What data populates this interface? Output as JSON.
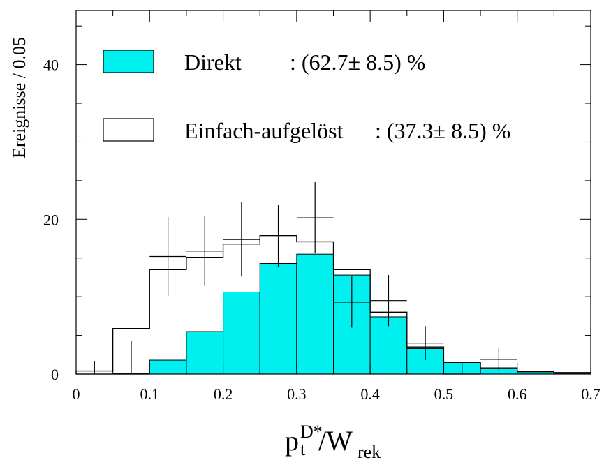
{
  "chart_data": {
    "type": "bar",
    "ylabel": "Ereignisse / 0.05",
    "xlabel": {
      "main": "p",
      "sup": "D*",
      "sub": "t",
      "rest": "/W",
      "rest_sub": "rek"
    },
    "xlim": [
      0,
      0.7
    ],
    "ylim": [
      0,
      47
    ],
    "x_ticks": [
      "0",
      "0.1",
      "0.2",
      "0.3",
      "0.4",
      "0.5",
      "0.6",
      "0.7"
    ],
    "y_ticks": [
      "0",
      "20",
      "40"
    ],
    "bin_edges": [
      0,
      0.05,
      0.1,
      0.15,
      0.2,
      0.25,
      0.3,
      0.35,
      0.4,
      0.45,
      0.5,
      0.55,
      0.6,
      0.65,
      0.7
    ],
    "series": [
      {
        "name": "Direkt",
        "legend_value": ": (62.7± 8.5) %",
        "style": "filled",
        "color": "#00f0f0",
        "values": [
          0,
          0.1,
          1.8,
          5.5,
          10.6,
          14.3,
          15.5,
          12.8,
          7.4,
          3.3,
          1.5,
          0.7,
          0.3,
          0.1
        ]
      },
      {
        "name": "Einfach-aufgelöst",
        "legend_value": ": (37.3± 8.5) %",
        "style": "outline",
        "color": "#000000",
        "values": [
          0.4,
          5.9,
          13.5,
          15.1,
          16.8,
          17.9,
          17.1,
          13.5,
          8.0,
          3.5,
          1.5,
          0.8,
          0.3,
          0.2
        ]
      }
    ],
    "data_points": {
      "style": "crosses",
      "x": [
        0.025,
        0.075,
        0.125,
        0.175,
        0.225,
        0.275,
        0.325,
        0.375,
        0.425,
        0.475,
        0.525,
        0.575
      ],
      "y": [
        0,
        0,
        15.2,
        15.9,
        17.4,
        17.9,
        20.2,
        9.3,
        9.5,
        4.0,
        0,
        1.9
      ],
      "yerr": [
        1.7,
        4.3,
        5.1,
        4.5,
        4.8,
        4.0,
        4.6,
        3.3,
        3.3,
        2.2,
        1.6,
        1.5
      ]
    }
  }
}
